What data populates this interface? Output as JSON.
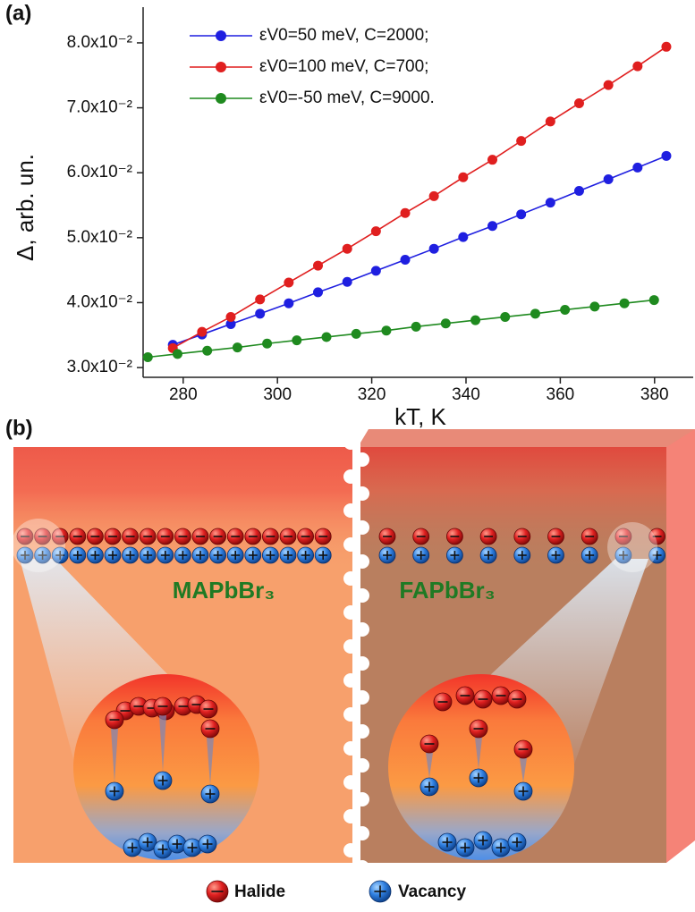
{
  "chart_data": {
    "type": "line",
    "panel_label": "(a)",
    "x_label": "kT, K",
    "y_label": "Δ, arb. un.",
    "xlim": [
      271.5,
      388.2
    ],
    "xticks": [
      280,
      300,
      320,
      340,
      360,
      380
    ],
    "ylim": [
      0.0285,
      0.0855
    ],
    "yticks": [
      {
        "value": 0.03,
        "label": "3.0x10⁻²"
      },
      {
        "value": 0.04,
        "label": "4.0x10⁻²"
      },
      {
        "value": 0.05,
        "label": "5.0x10⁻²"
      },
      {
        "value": 0.06,
        "label": "6.0x10⁻²"
      },
      {
        "value": 0.07,
        "label": "7.0x10⁻²"
      },
      {
        "value": 0.08,
        "label": "8.0x10⁻²"
      }
    ],
    "series": [
      {
        "name": "εV0=50 meV, C=2000;",
        "color": "#1f1fe0",
        "x": [
          277.8,
          284.0,
          290.1,
          296.3,
          302.4,
          308.6,
          314.8,
          320.9,
          327.1,
          333.2,
          339.4,
          345.6,
          351.7,
          357.9,
          364.0,
          370.2,
          376.4,
          382.5
        ],
        "values": [
          0.0335,
          0.0351,
          0.0367,
          0.0383,
          0.0399,
          0.0416,
          0.0432,
          0.0449,
          0.0466,
          0.0483,
          0.0501,
          0.0518,
          0.0536,
          0.0554,
          0.0572,
          0.059,
          0.0608,
          0.0626
        ]
      },
      {
        "name": "εV0=100 meV, C=700;",
        "color": "#e01f1f",
        "x": [
          277.8,
          284.0,
          290.1,
          296.3,
          302.4,
          308.6,
          314.8,
          320.9,
          327.1,
          333.2,
          339.4,
          345.6,
          351.7,
          357.9,
          364.0,
          370.2,
          376.4,
          382.5
        ],
        "values": [
          0.033,
          0.0355,
          0.0378,
          0.0405,
          0.0431,
          0.0457,
          0.0483,
          0.051,
          0.0538,
          0.0564,
          0.0593,
          0.062,
          0.0649,
          0.0679,
          0.0707,
          0.0735,
          0.0764,
          0.0794
        ]
      },
      {
        "name": "εV0=-50 meV, C=9000.",
        "color": "#1f8a1f",
        "x": [
          272.5,
          278.8,
          285.1,
          291.5,
          297.8,
          304.1,
          310.4,
          316.7,
          323.1,
          329.4,
          335.7,
          342.0,
          348.3,
          354.7,
          361.0,
          367.3,
          373.6,
          379.9
        ],
        "values": [
          0.0316,
          0.0321,
          0.0326,
          0.0331,
          0.0337,
          0.0342,
          0.0347,
          0.0352,
          0.0357,
          0.0363,
          0.0368,
          0.0373,
          0.0378,
          0.0383,
          0.0389,
          0.0394,
          0.0399,
          0.0404
        ]
      }
    ]
  },
  "diagram": {
    "panel_label": "(b)",
    "materials": [
      "MAPbBr₃",
      "FAPbBr₃"
    ],
    "legend": [
      "Halide",
      "Vacancy"
    ]
  }
}
